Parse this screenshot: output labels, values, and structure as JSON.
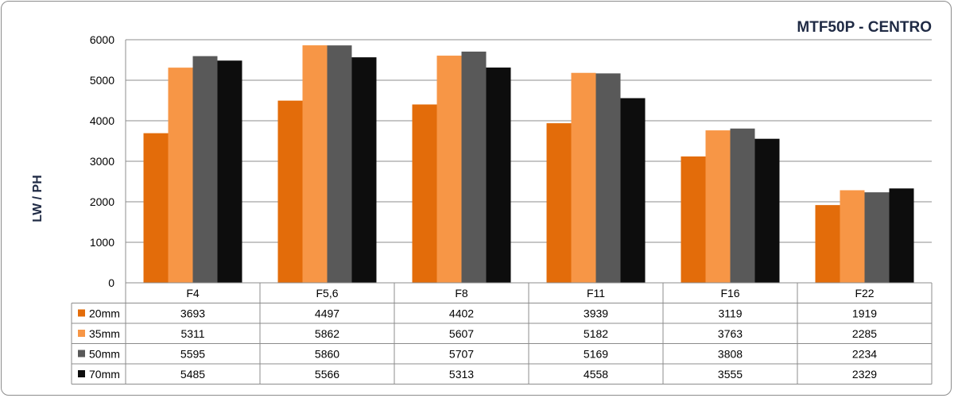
{
  "chart_data": {
    "type": "bar",
    "title": "MTF50P - CENTRO",
    "ylabel": "LW / PH",
    "xlabel": "",
    "ylim": [
      0,
      6000
    ],
    "yticks": [
      "0",
      "1000",
      "2000",
      "3000",
      "4000",
      "5000",
      "6000"
    ],
    "grid": true,
    "legend": "data-table",
    "categories": [
      "F4",
      "F5,6",
      "F8",
      "F11",
      "F16",
      "F22"
    ],
    "series": [
      {
        "name": "20mm",
        "color": "#e36c0a",
        "values": [
          3693,
          4497,
          4402,
          3939,
          3119,
          1919
        ]
      },
      {
        "name": "35mm",
        "color": "#f79646",
        "values": [
          5311,
          5862,
          5607,
          5182,
          3763,
          2285
        ]
      },
      {
        "name": "50mm",
        "color": "#595959",
        "values": [
          5595,
          5860,
          5707,
          5169,
          3808,
          2234
        ]
      },
      {
        "name": "70mm",
        "color": "#0d0d0d",
        "values": [
          5485,
          5566,
          5313,
          4558,
          3555,
          2329
        ]
      }
    ]
  }
}
